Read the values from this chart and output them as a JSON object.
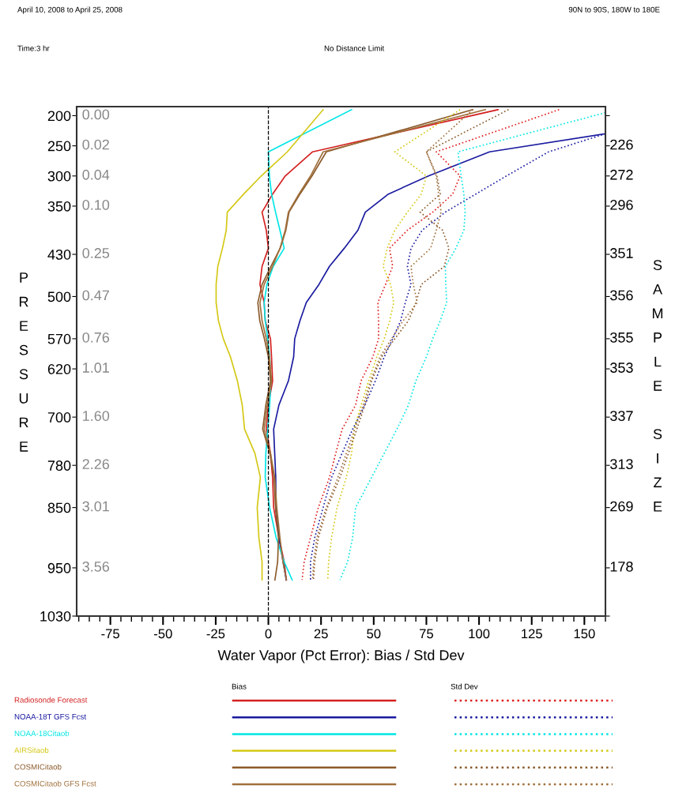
{
  "chart_data": {
    "type": "line",
    "orientation": "horizontal",
    "xlabel": "Water Vapor (Pct Error): Bias / Std Dev",
    "ylabel": "PRESSURE",
    "y2label": "SAMPLE SIZE",
    "x": [
      190,
      260,
      300,
      330,
      360,
      390,
      420,
      450,
      480,
      510,
      540,
      570,
      600,
      640,
      680,
      720,
      760,
      800,
      850,
      900,
      940,
      970
    ],
    "series": [
      {
        "name": "Radiosonde Forecast",
        "color": "#d42020",
        "line_style": "solid",
        "values": [
          109,
          21,
          8,
          2,
          -3,
          -1,
          0,
          -3,
          -4,
          -2,
          -1.5,
          1,
          1.5,
          2,
          0,
          -1,
          1,
          2,
          2.5,
          5,
          7.5,
          8.5
        ]
      },
      {
        "name": "NOAA-18T GFS Fcst",
        "color": "#1a1aa0",
        "line_style": "solid",
        "x": [
          230,
          260,
          300,
          330,
          360,
          390,
          420,
          450,
          480,
          510,
          540,
          570,
          600,
          640,
          680,
          720,
          760,
          800,
          850,
          900,
          940,
          970
        ],
        "values": [
          160,
          105,
          76,
          57,
          46,
          42.5,
          36,
          29,
          24,
          18,
          15,
          12.5,
          12,
          9.5,
          5,
          2.5,
          3,
          3.5,
          3.5,
          5,
          7,
          8.5
        ]
      },
      {
        "name": "NOAA-18Citaob",
        "color": "#00e5e5",
        "line_style": "solid",
        "values": [
          39.5,
          0,
          0.5,
          1.5,
          3.4,
          5.5,
          7.5,
          2.3,
          -0.7,
          -2,
          -1.5,
          -0.3,
          0.6,
          1.2,
          0.6,
          -0.3,
          -1.2,
          -1.5,
          0.6,
          3.7,
          7.5,
          11.3
        ]
      },
      {
        "name": "AIRSitaob",
        "color": "#d4c814",
        "line_style": "solid",
        "values": [
          26,
          9,
          -3.4,
          -11.7,
          -19.5,
          -20,
          -21.8,
          -24,
          -24.8,
          -24.8,
          -23.7,
          -21.4,
          -18,
          -14.7,
          -12.4,
          -11.3,
          -6.4,
          -3.8,
          -5.3,
          -4.5,
          -3,
          -3
        ]
      },
      {
        "name": "COSMICitaob",
        "color": "#8b5a2b",
        "line_style": "solid",
        "values": [
          97,
          27.5,
          20.7,
          15,
          9.8,
          8.3,
          5.6,
          1.2,
          -3,
          -5,
          -4.1,
          -1.9,
          0,
          1,
          -1.2,
          -2.7,
          0.7,
          2.7,
          3.4,
          4.8,
          4.4,
          3.1
        ]
      },
      {
        "name": "COSMICitaob GFS Fcst",
        "color": "#a0703c",
        "line_style": "solid",
        "values": [
          103,
          26,
          20,
          14.5,
          9.5,
          8,
          5.5,
          2,
          -2,
          -4,
          -3,
          -1,
          0.5,
          1.5,
          -0.5,
          -2,
          1,
          3,
          4,
          5.5,
          6.9,
          8.6
        ]
      },
      {
        "color": "#e02020",
        "line_style": "dotted",
        "values": [
          138,
          79.7,
          91,
          87.5,
          78,
          66,
          57.5,
          59,
          55.6,
          52,
          52.3,
          52.3,
          49.6,
          44,
          41.4,
          35,
          32,
          29,
          23.7,
          20,
          17,
          16
        ]
      },
      {
        "color": "#1a1aa0",
        "line_style": "dotted",
        "x": [
          230,
          260,
          300,
          330,
          360,
          390,
          420,
          450,
          480,
          510,
          540,
          570,
          600,
          640,
          680,
          720,
          760,
          800,
          850,
          900,
          940,
          970
        ],
        "values": [
          160,
          133,
          113,
          98.5,
          84,
          73,
          67.7,
          66,
          67.7,
          65,
          62.8,
          59,
          55,
          50.8,
          45.8,
          40,
          35,
          30,
          26,
          22,
          20,
          20
        ]
      },
      {
        "color": "#00e5e5",
        "line_style": "dotted",
        "x": [
          195,
          260,
          300,
          330,
          360,
          390,
          420,
          450,
          480,
          510,
          540,
          570,
          600,
          640,
          680,
          720,
          760,
          800,
          850,
          900,
          940,
          970
        ],
        "values": [
          160,
          90,
          91.5,
          92.8,
          93.4,
          92.8,
          89,
          84,
          84.2,
          84.6,
          81.6,
          78,
          75,
          70,
          66.5,
          61,
          55,
          49,
          41.4,
          40,
          37.6,
          34
        ]
      },
      {
        "color": "#d4c814",
        "line_style": "dotted",
        "values": [
          91,
          60,
          75,
          72.6,
          66,
          60,
          56.4,
          54.5,
          58,
          59.5,
          57.6,
          55,
          51.5,
          47.6,
          44,
          40.7,
          39.5,
          37,
          32.6,
          30,
          28.6,
          28.2
        ]
      },
      {
        "color": "#8b5a2b",
        "line_style": "dotted",
        "values": [
          114,
          75,
          80,
          81.6,
          72,
          82.7,
          85.7,
          83.5,
          72.6,
          70,
          66.5,
          60,
          53.8,
          49,
          45.8,
          42,
          38,
          34,
          28,
          23.7,
          22,
          21.4
        ]
      },
      {
        "color": "#a0703c",
        "line_style": "dotted",
        "values": [
          97,
          75,
          79.7,
          80.8,
          82,
          79.7,
          77,
          67.7,
          68.8,
          70.7,
          64,
          58.5,
          53,
          48.5,
          45,
          41,
          37,
          33,
          27.5,
          23,
          21.5,
          21
        ]
      }
    ],
    "xlim": [
      -91,
      160
    ],
    "xticks": [
      -75,
      -50,
      -25,
      0,
      25,
      50,
      75,
      100,
      125,
      150
    ],
    "ylim": [
      1030,
      185
    ],
    "yticks": [
      200,
      250,
      300,
      350,
      430,
      500,
      570,
      620,
      700,
      780,
      850,
      950,
      1030
    ],
    "ref_lines": [
      {
        "axis": "x",
        "value": 0,
        "color": "#000000",
        "line_style": "dashed"
      }
    ],
    "annotations": [
      "April 10, 2008 to April 25, 2008",
      "90N to 90S, 180W to 180E",
      "Time:3 hr",
      "No Distance Limit",
      "Bias",
      "Std Dev",
      "0.00",
      "0.02",
      "0.04",
      "0.10",
      "0.25",
      "0.47",
      "0.76",
      "1.01",
      "1.60",
      "2.26",
      "3.01",
      "3.56",
      "226",
      "272",
      "296",
      "351",
      "356",
      "355",
      "353",
      "337",
      "313",
      "269",
      "178"
    ],
    "legend": "bottom",
    "grid": false
  }
}
